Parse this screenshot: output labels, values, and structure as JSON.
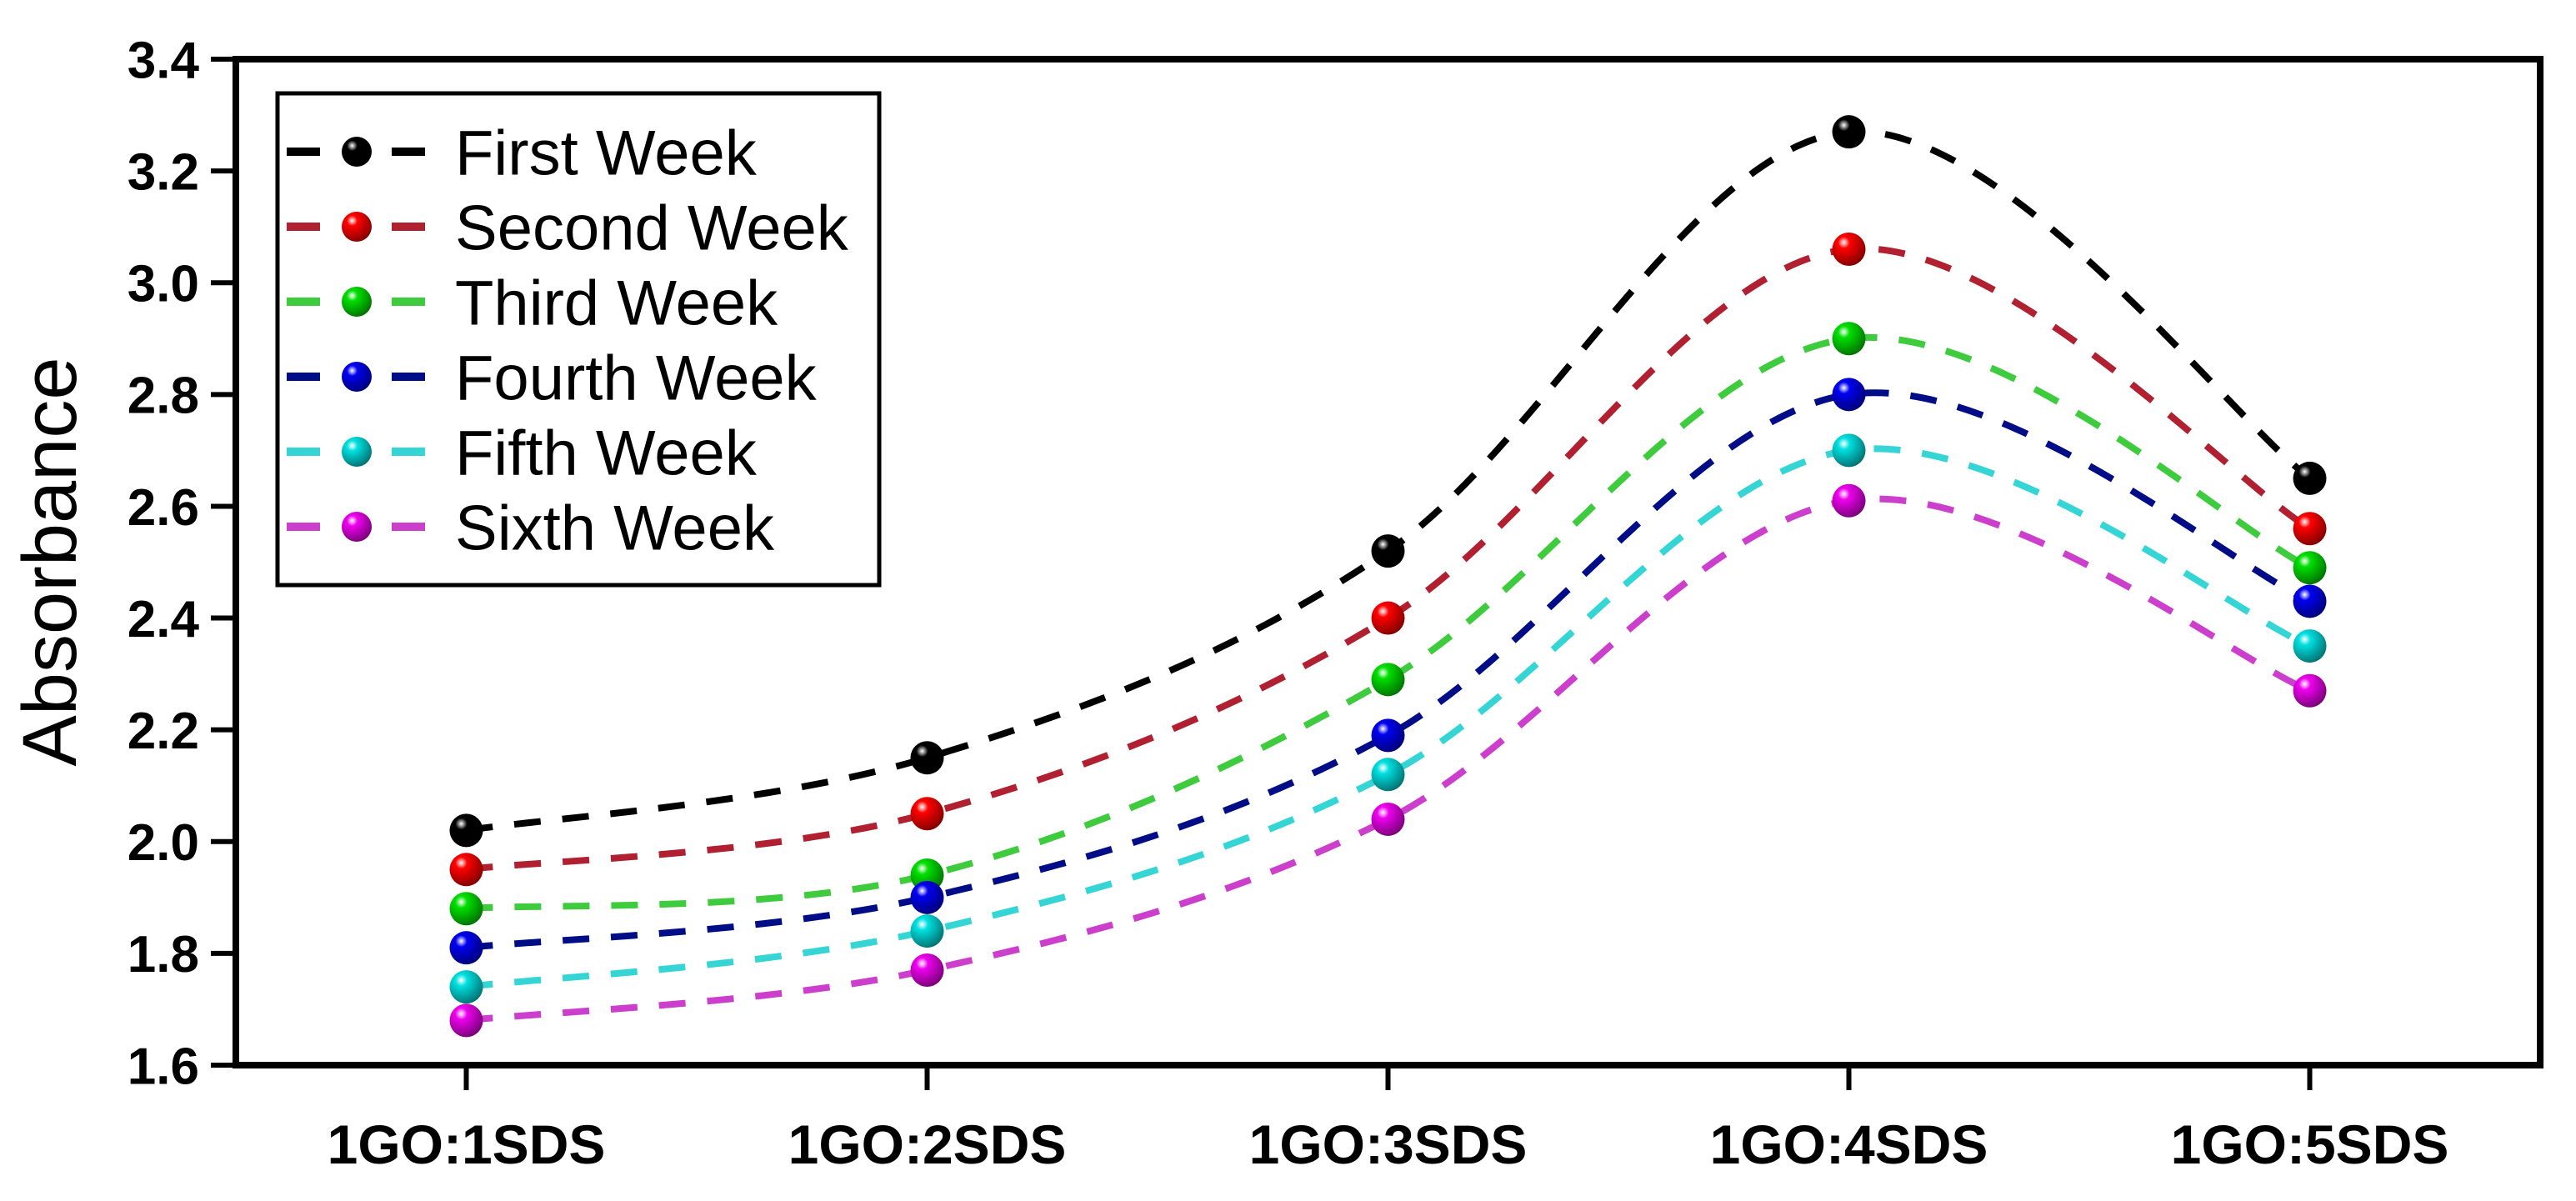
{
  "chart_data": {
    "type": "line",
    "title": "",
    "xlabel": "",
    "ylabel": "Absorbance",
    "categories": [
      "1GO:1SDS",
      "1GO:2SDS",
      "1GO:3SDS",
      "1GO:4SDS",
      "1GO:5SDS"
    ],
    "series": [
      {
        "name": "First Week",
        "line_color": "#000000",
        "marker_color": "#000000",
        "values": [
          2.02,
          2.15,
          2.52,
          3.27,
          2.65
        ]
      },
      {
        "name": "Second Week",
        "line_color": "#b02030",
        "marker_color": "#ff0000",
        "values": [
          1.95,
          2.05,
          2.4,
          3.06,
          2.56
        ]
      },
      {
        "name": "Third Week",
        "line_color": "#3ecc3e",
        "marker_color": "#00e000",
        "values": [
          1.88,
          1.94,
          2.29,
          2.9,
          2.49
        ]
      },
      {
        "name": "Fourth Week",
        "line_color": "#000d86",
        "marker_color": "#0000f0",
        "values": [
          1.81,
          1.9,
          2.19,
          2.8,
          2.43
        ]
      },
      {
        "name": "Fifth Week",
        "line_color": "#35d5d5",
        "marker_color": "#00e0e0",
        "values": [
          1.74,
          1.84,
          2.12,
          2.7,
          2.35
        ]
      },
      {
        "name": "Sixth Week",
        "line_color": "#cc3fcc",
        "marker_color": "#ee00ee",
        "values": [
          1.68,
          1.77,
          2.04,
          2.61,
          2.27
        ]
      }
    ],
    "ylim": [
      1.6,
      3.4
    ],
    "ytick_step": 0.2,
    "y_tick_labels": [
      "1.6",
      "1.8",
      "2.0",
      "2.2",
      "2.4",
      "2.6",
      "2.8",
      "3.0",
      "3.2",
      "3.4"
    ],
    "grid": false,
    "legend_position": "top-left",
    "line_style": "dashed",
    "marker_style": "sphere",
    "axis_color": "#000000"
  }
}
